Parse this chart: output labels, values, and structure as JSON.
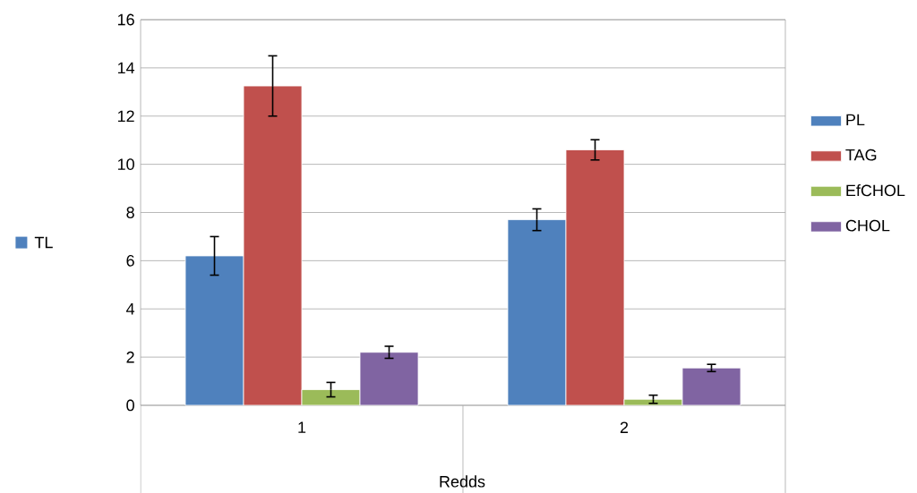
{
  "chart_data": {
    "type": "bar",
    "xlabel": "Redds",
    "ylabel": "TL",
    "categories": [
      "1",
      "2"
    ],
    "series": [
      {
        "name": "PL",
        "color": "#4f81bd",
        "values": [
          6.2,
          7.7
        ],
        "errors": [
          0.8,
          0.45
        ]
      },
      {
        "name": "TAG",
        "color": "#c0504d",
        "values": [
          13.25,
          10.6
        ],
        "errors": [
          1.25,
          0.42
        ]
      },
      {
        "name": "EfCHOL",
        "color": "#9bbb59",
        "values": [
          0.65,
          0.25
        ],
        "errors": [
          0.3,
          0.17
        ]
      },
      {
        "name": "CHOL",
        "color": "#8064a2",
        "values": [
          2.2,
          1.55
        ],
        "errors": [
          0.25,
          0.15
        ]
      }
    ],
    "ylim": [
      0,
      16
    ],
    "yticks": [
      0,
      2,
      4,
      6,
      8,
      10,
      12,
      14,
      16
    ],
    "grid": "y",
    "legend": "right"
  }
}
